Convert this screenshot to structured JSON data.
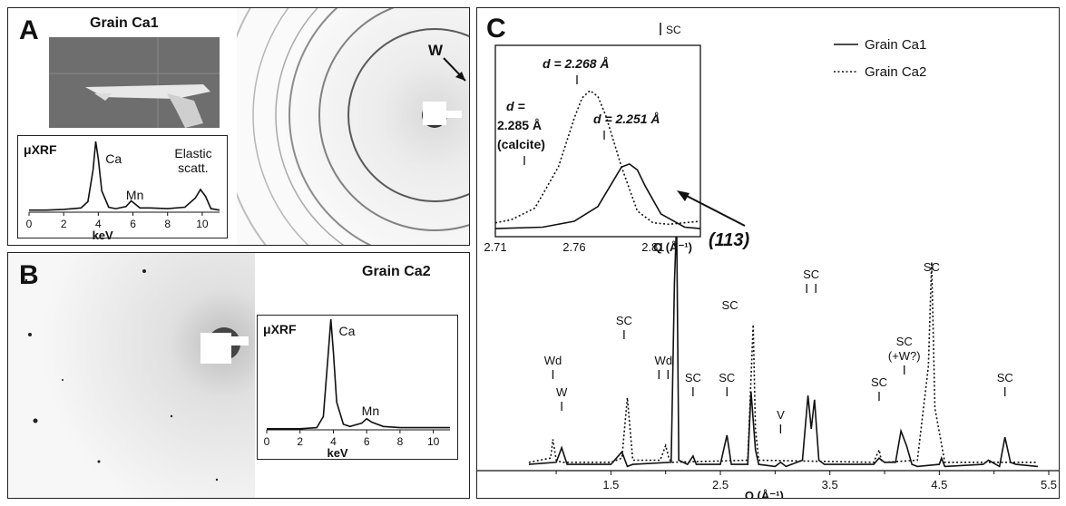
{
  "panel_a": {
    "label": "A",
    "title": "Grain Ca1",
    "xrf": {
      "label": "μXRF",
      "xlabel": "keV",
      "xticks": [
        "0",
        "2",
        "4",
        "6",
        "8",
        "10"
      ],
      "annotations": [
        "Ca",
        "Mn",
        "Elastic",
        "scatt."
      ]
    },
    "pattern_annotation": "W"
  },
  "panel_b": {
    "label": "B",
    "title": "Grain Ca2",
    "xrf": {
      "label": "μXRF",
      "xlabel": "keV",
      "xticks": [
        "0",
        "2",
        "4",
        "6",
        "8",
        "10"
      ],
      "annotations": [
        "Ca",
        "Mn"
      ]
    }
  },
  "panel_c": {
    "label": "C",
    "legend": [
      "Grain Ca1",
      "Grain Ca2"
    ],
    "sc_key": "SC",
    "main_xlabel": "Q (Å⁻¹)",
    "main_xticks": [
      "1.5",
      "2.5",
      "3.5",
      "4.5",
      "5.5"
    ],
    "inset": {
      "xlabel": "Q (Å⁻¹)",
      "xticks": [
        "2.71",
        "2.76",
        "2.81"
      ],
      "d_labels": {
        "top": "d = 2.268 Å",
        "left_d": "d =",
        "left_val": "2.285 Å",
        "left_note": "(calcite)",
        "right": "d = 2.251 Å"
      }
    },
    "reflection_label": "(113)",
    "peak_labels": {
      "wd": "Wd",
      "w": "W",
      "sc": "SC",
      "v": "V",
      "w_q": "(+W?)"
    }
  },
  "chart_data": [
    {
      "type": "line",
      "panel": "A",
      "xlabel": "keV",
      "xlim": [
        0,
        11
      ],
      "series": [
        {
          "x": [
            0,
            1,
            2,
            3,
            3.4,
            3.7,
            3.85,
            4.0,
            4.2,
            4.6,
            5,
            5.6,
            5.9,
            6.1,
            6.4,
            7,
            8,
            9,
            9.6,
            9.9,
            10.2,
            10.5,
            11
          ],
          "y": [
            0.03,
            0.03,
            0.04,
            0.06,
            0.15,
            0.6,
            1.0,
            0.75,
            0.3,
            0.07,
            0.05,
            0.08,
            0.16,
            0.12,
            0.06,
            0.06,
            0.05,
            0.07,
            0.2,
            0.32,
            0.22,
            0.05,
            0.03
          ]
        }
      ]
    },
    {
      "type": "line",
      "panel": "B",
      "xlabel": "keV",
      "xlim": [
        0,
        11
      ],
      "series": [
        {
          "x": [
            0,
            1,
            2,
            3,
            3.4,
            3.7,
            3.85,
            4.0,
            4.2,
            4.6,
            5,
            5.7,
            6.0,
            6.3,
            7,
            8,
            9,
            10,
            11
          ],
          "y": [
            0.01,
            0.01,
            0.01,
            0.02,
            0.12,
            0.7,
            1.0,
            0.7,
            0.25,
            0.05,
            0.03,
            0.06,
            0.1,
            0.07,
            0.03,
            0.02,
            0.02,
            0.02,
            0.02
          ]
        }
      ]
    },
    {
      "type": "line",
      "panel": "C inset",
      "xlabel": "Q (Å⁻¹)",
      "xlim": [
        2.71,
        2.84
      ],
      "series": [
        {
          "name": "Grain Ca1",
          "x": [
            2.71,
            2.74,
            2.76,
            2.775,
            2.785,
            2.79,
            2.795,
            2.8,
            2.805,
            2.815,
            2.83,
            2.84
          ],
          "y": [
            0.03,
            0.04,
            0.08,
            0.18,
            0.36,
            0.45,
            0.47,
            0.43,
            0.32,
            0.13,
            0.04,
            0.03
          ]
        },
        {
          "name": "Grain Ca2",
          "x": [
            2.71,
            2.72,
            2.735,
            2.75,
            2.76,
            2.765,
            2.77,
            2.775,
            2.78,
            2.79,
            2.8,
            2.81,
            2.82,
            2.84
          ],
          "y": [
            0.07,
            0.09,
            0.17,
            0.45,
            0.78,
            0.92,
            0.97,
            0.93,
            0.8,
            0.45,
            0.15,
            0.07,
            0.06,
            0.08
          ]
        }
      ]
    },
    {
      "type": "line",
      "panel": "C main",
      "xlabel": "Q (Å⁻¹)",
      "xlim": [
        0.7,
        5.5
      ],
      "series": [
        {
          "name": "Grain Ca1",
          "x": [
            0.75,
            1.0,
            1.05,
            1.1,
            1.5,
            1.6,
            1.65,
            1.7,
            2.05,
            2.08,
            2.1,
            2.12,
            2.2,
            2.25,
            2.28,
            2.3,
            2.5,
            2.56,
            2.6,
            2.75,
            2.78,
            2.82,
            2.85,
            3.0,
            3.05,
            3.1,
            3.25,
            3.3,
            3.33,
            3.36,
            3.4,
            3.45,
            3.9,
            3.95,
            4.0,
            4.1,
            4.15,
            4.2,
            4.25,
            4.3,
            4.5,
            4.52,
            4.55,
            4.9,
            4.95,
            5.05,
            5.1,
            5.15,
            5.2,
            5.4
          ],
          "y": [
            0.03,
            0.04,
            0.11,
            0.03,
            0.03,
            0.09,
            0.02,
            0.03,
            0.04,
            0.9,
            1.2,
            0.05,
            0.03,
            0.07,
            0.03,
            0.03,
            0.03,
            0.17,
            0.03,
            0.03,
            0.38,
            0.1,
            0.03,
            0.02,
            0.04,
            0.02,
            0.05,
            0.36,
            0.2,
            0.34,
            0.05,
            0.03,
            0.03,
            0.06,
            0.04,
            0.04,
            0.19,
            0.12,
            0.03,
            0.02,
            0.03,
            0.06,
            0.02,
            0.03,
            0.05,
            0.02,
            0.16,
            0.04,
            0.03,
            0.02
          ]
        },
        {
          "name": "Grain Ca2",
          "x": [
            0.75,
            0.95,
            0.97,
            1.0,
            1.05,
            1.5,
            1.6,
            1.65,
            1.7,
            1.95,
            2.0,
            2.03,
            2.05,
            2.75,
            2.8,
            2.82,
            2.85,
            3.9,
            3.95,
            3.97,
            4.0,
            4.3,
            4.4,
            4.43,
            4.46,
            4.55,
            5.0,
            5.4
          ],
          "y": [
            0.04,
            0.06,
            0.15,
            0.05,
            0.04,
            0.04,
            0.06,
            0.35,
            0.05,
            0.05,
            0.12,
            0.06,
            0.04,
            0.05,
            0.7,
            0.2,
            0.05,
            0.04,
            0.1,
            0.05,
            0.04,
            0.05,
            0.5,
            1.0,
            0.3,
            0.04,
            0.04,
            0.04
          ]
        }
      ]
    }
  ]
}
